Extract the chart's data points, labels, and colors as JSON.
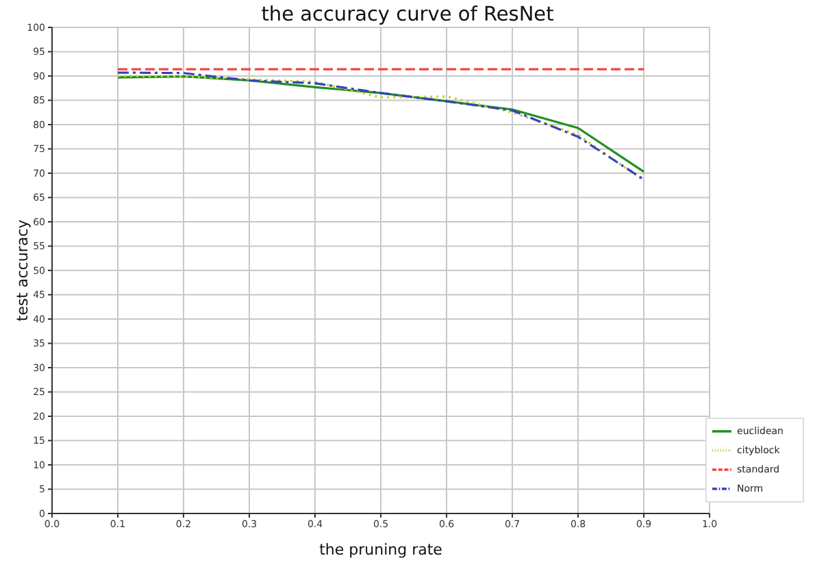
{
  "chart_data": {
    "type": "line",
    "title": "the accuracy curve of ResNet",
    "xlabel": "the pruning rate",
    "ylabel": "test accuracy",
    "x": [
      0.1,
      0.2,
      0.3,
      0.4,
      0.5,
      0.6,
      0.7,
      0.8,
      0.9
    ],
    "series": [
      {
        "name": "euclidean",
        "color": "#1f8f1f",
        "line_style": "solid",
        "values": [
          89.7,
          89.9,
          89.1,
          87.7,
          86.5,
          84.8,
          83.1,
          79.3,
          70.3
        ]
      },
      {
        "name": "cityblock",
        "color": "#cccc22",
        "line_style": "dotted",
        "values": [
          90.0,
          89.9,
          89.3,
          88.8,
          85.6,
          85.8,
          82.5,
          77.9,
          68.5
        ]
      },
      {
        "name": "standard",
        "color": "#f04545",
        "line_style": "dashed",
        "values": [
          91.4,
          91.4,
          91.4,
          91.4,
          91.4,
          91.4,
          91.4,
          91.4,
          91.4
        ]
      },
      {
        "name": "Norm",
        "color": "#3344bb",
        "line_style": "dashdot",
        "values": [
          90.7,
          90.6,
          89.1,
          88.5,
          86.5,
          84.8,
          82.9,
          77.5,
          68.7
        ]
      }
    ],
    "xlim": [
      0,
      1
    ],
    "xticks": [
      {
        "value": 0,
        "label": "0.0"
      },
      0.1,
      0.2,
      0.3,
      0.4,
      0.5,
      0.6,
      0.7,
      0.8,
      0.9,
      {
        "value": 1,
        "label": "1.0"
      }
    ],
    "ylim": [
      0,
      100
    ],
    "yticks": [
      0,
      5,
      10,
      15,
      20,
      25,
      30,
      35,
      40,
      45,
      50,
      55,
      60,
      65,
      70,
      75,
      80,
      85,
      90,
      95,
      100
    ],
    "grid": true,
    "legend": "bottom right",
    "marker": "none"
  }
}
